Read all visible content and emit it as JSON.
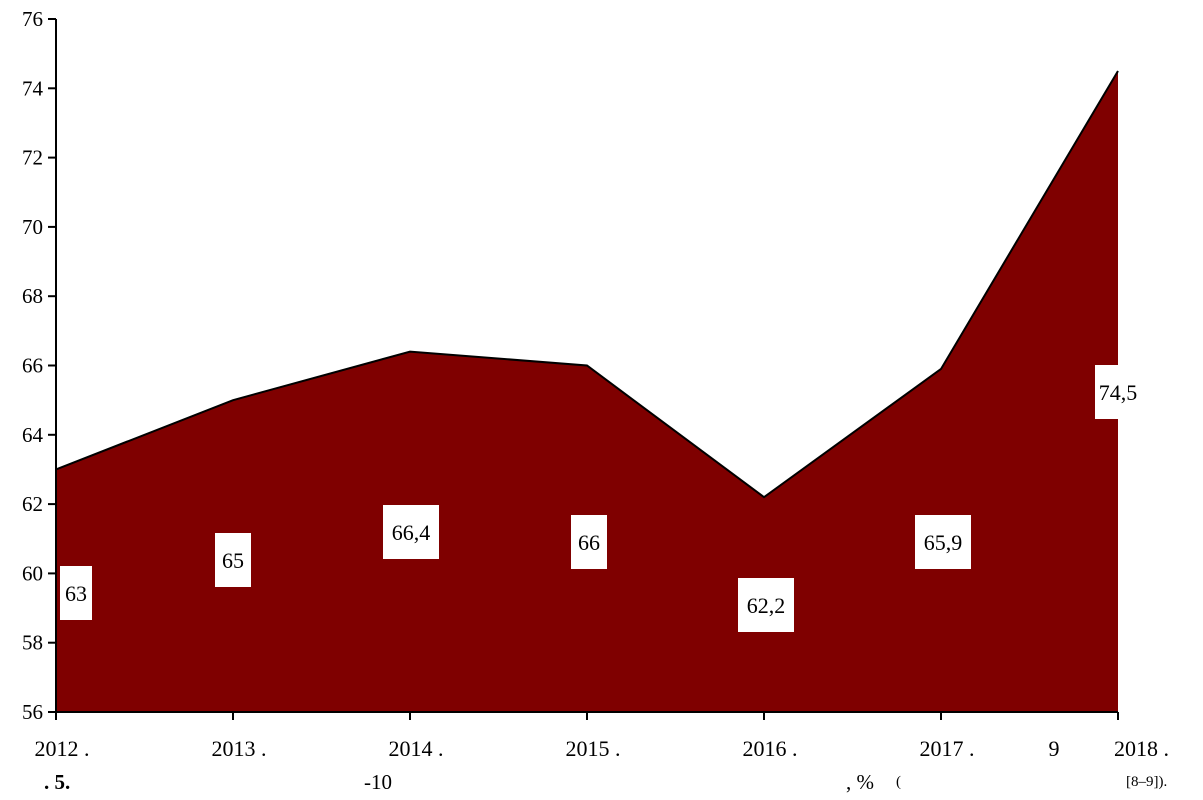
{
  "chart_data": {
    "type": "area",
    "x": [
      "2012 .",
      "2013 .",
      "2014 .",
      "2015 .",
      "2016 .",
      "2017 .",
      "2018 ."
    ],
    "values": [
      63,
      65,
      66.4,
      66,
      62.2,
      65.9,
      74.5
    ],
    "data_labels": [
      "63",
      "65",
      "66,4",
      "66",
      "62,2",
      "65,9",
      "74,5"
    ],
    "ylim": [
      56,
      76
    ],
    "yticks": [
      "56",
      "58",
      "60",
      "62",
      "64",
      "66",
      "68",
      "70",
      "72",
      "74",
      "76"
    ],
    "extra_x_label": "9",
    "grid": false,
    "fill_color": "#7f0000",
    "line_color": "#000000",
    "label_bg": "#ffffff"
  },
  "caption": {
    "figure_number": ". 5.",
    "part_a": "-10",
    "part_b": ", %",
    "part_c": "(",
    "source": "[8–9])."
  }
}
